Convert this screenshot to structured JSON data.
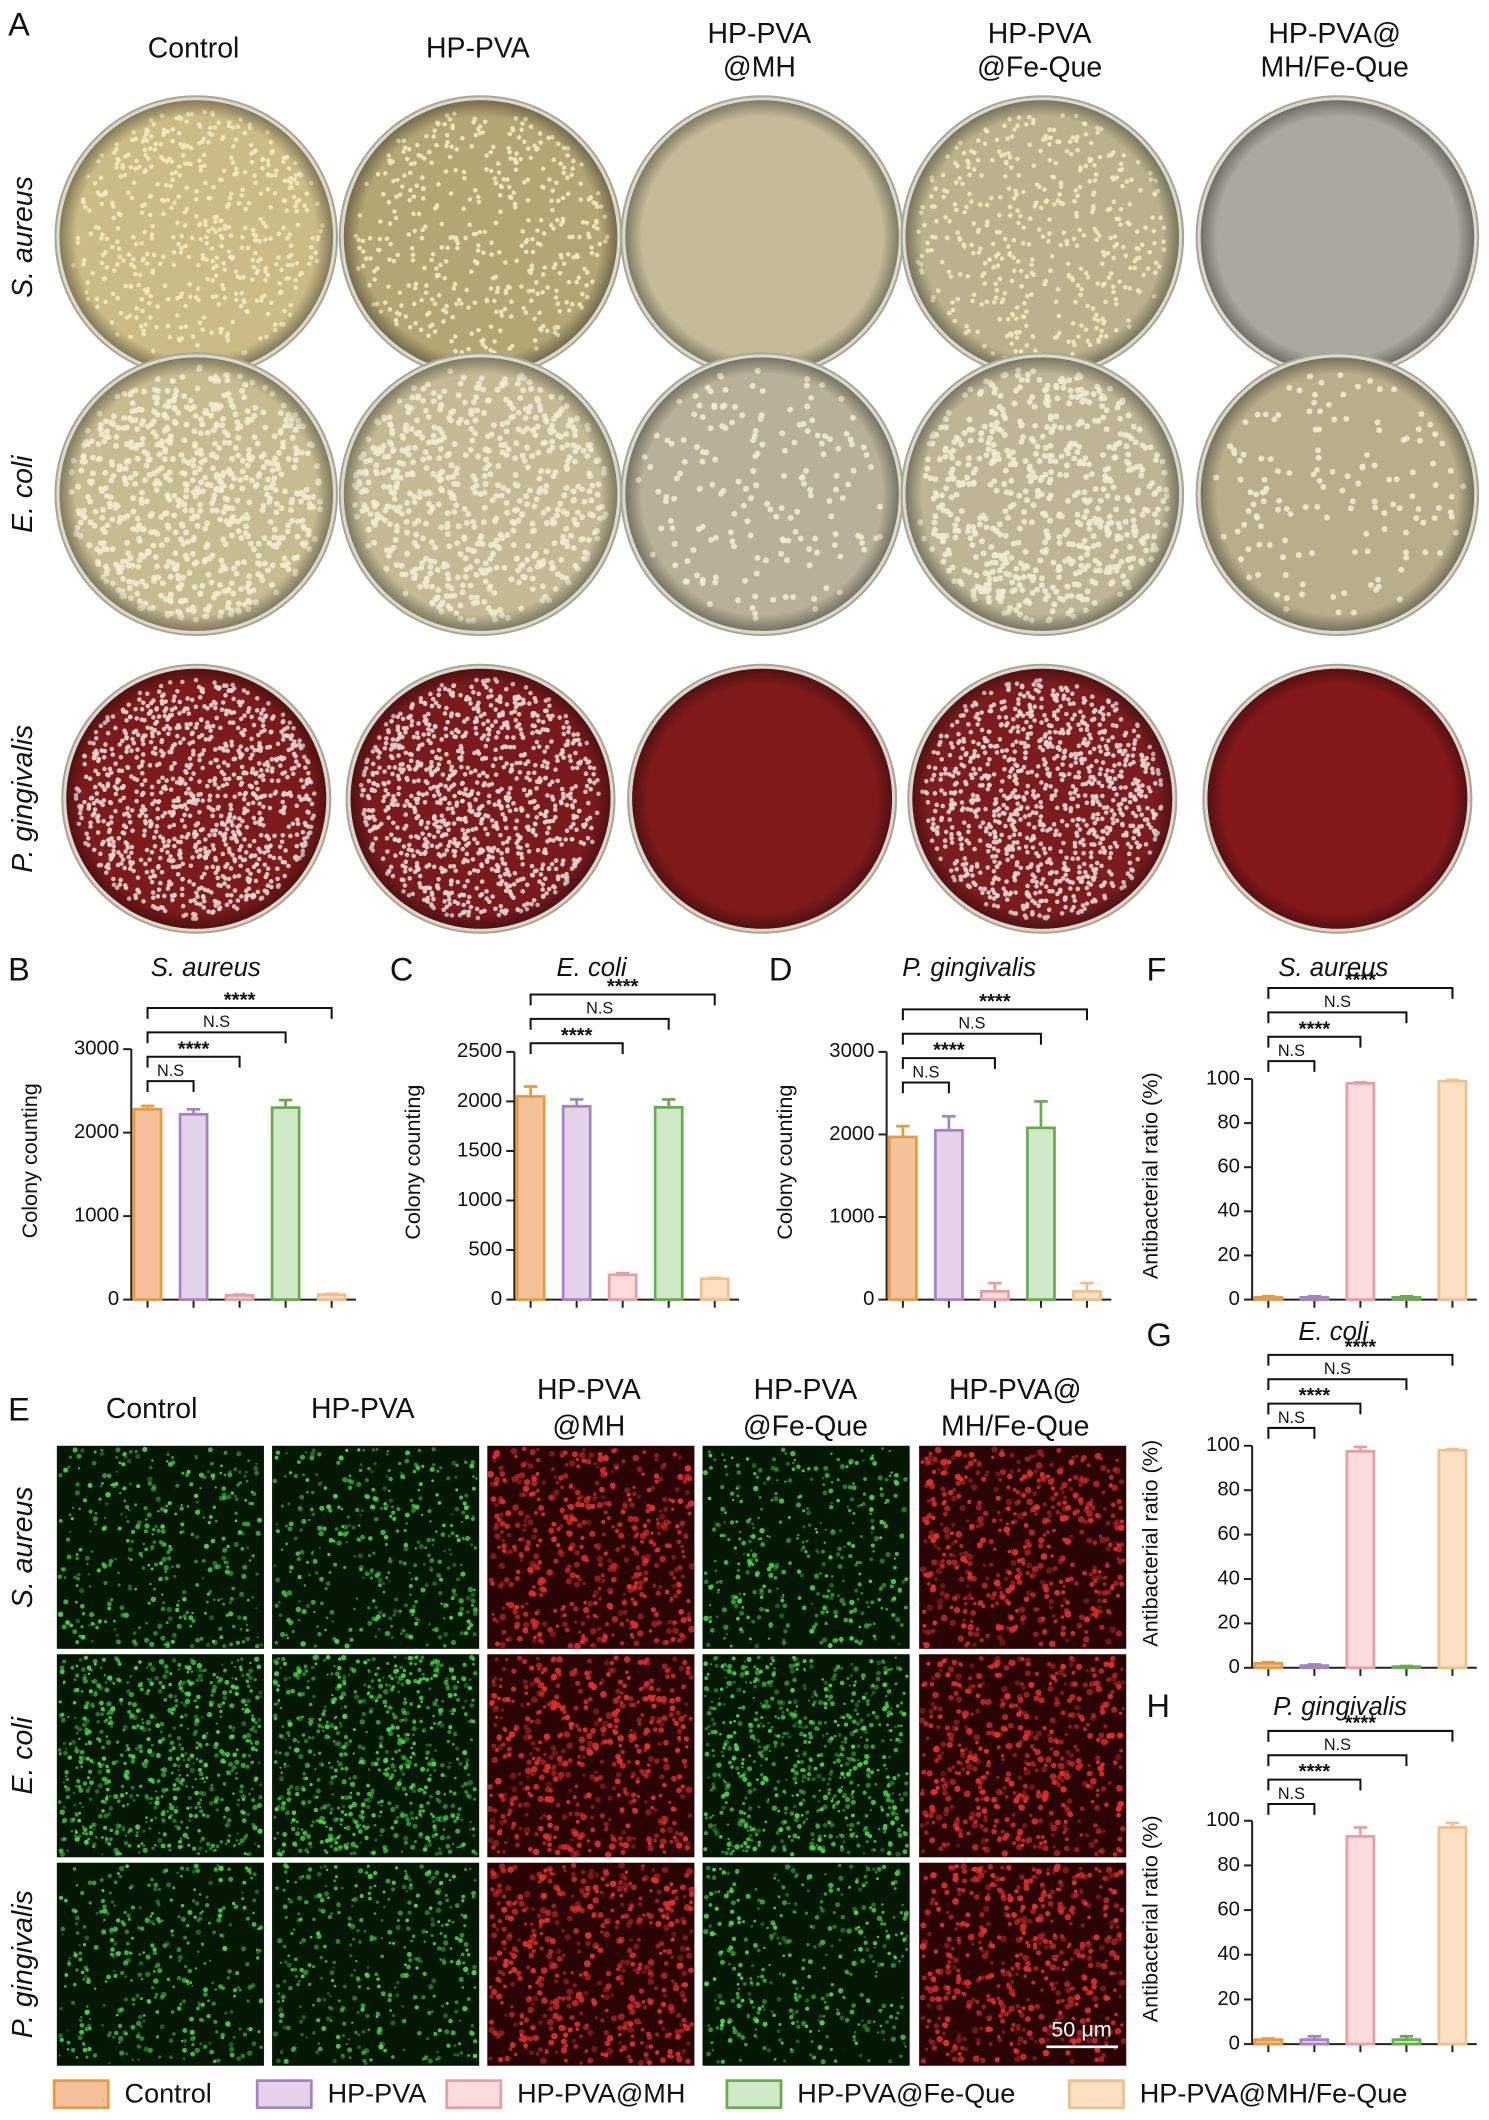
{
  "panel_a": {
    "label": "A",
    "columns": [
      [
        "Control"
      ],
      [
        "HP-PVA"
      ],
      [
        "HP-PVA",
        "@MH"
      ],
      [
        "HP-PVA",
        "@Fe-Que"
      ],
      [
        "HP-PVA@",
        "MH/Fe-Que"
      ]
    ],
    "rows": [
      "S. aureus",
      "E. coli",
      "P. gingivalis"
    ]
  },
  "panel_e": {
    "label": "E",
    "columns": [
      [
        "Control"
      ],
      [
        "HP-PVA"
      ],
      [
        "HP-PVA",
        "@MH"
      ],
      [
        "HP-PVA",
        "@Fe-Que"
      ],
      [
        "HP-PVA@",
        "MH/Fe-Que"
      ]
    ],
    "rows": [
      "S. aureus",
      "E. coli",
      "P. gingivalis"
    ],
    "scale_bar": "50 μm"
  },
  "legend": [
    {
      "name": "Control",
      "fill": "#f5c09a",
      "stroke": "#e89a3c"
    },
    {
      "name": "HP-PVA",
      "fill": "#e4d2ea",
      "stroke": "#a383c4"
    },
    {
      "name": "HP-PVA@MH",
      "fill": "#fcdcdc",
      "stroke": "#e99ca4"
    },
    {
      "name": "HP-PVA@Fe-Que",
      "fill": "#cfe9c6",
      "stroke": "#66ad4a"
    },
    {
      "name": "HP-PVA@MH/Fe-Que",
      "fill": "#fde1c2",
      "stroke": "#f2bf86"
    }
  ],
  "chart_data": [
    {
      "type": "bar",
      "label": "B",
      "title": "S. aureus",
      "ylabel": "Colony counting",
      "categories": [
        null,
        null,
        null,
        null,
        null
      ],
      "values": [
        2280,
        2220,
        50,
        2300,
        60
      ],
      "errors": [
        40,
        60,
        10,
        90,
        10
      ],
      "ylim": [
        0,
        3000
      ],
      "yticks": [
        0,
        1000,
        2000,
        3000
      ],
      "comparisons": [
        {
          "to": 1,
          "label": "N.S"
        },
        {
          "to": 2,
          "label": "****"
        },
        {
          "to": 3,
          "label": "N.S"
        },
        {
          "to": 4,
          "label": "****"
        }
      ]
    },
    {
      "type": "bar",
      "label": "C",
      "title": "E. coli",
      "ylabel": "Colony counting",
      "categories": [
        null,
        null,
        null,
        null,
        null
      ],
      "values": [
        2050,
        1950,
        250,
        1940,
        210
      ],
      "errors": [
        100,
        70,
        15,
        80,
        10
      ],
      "ylim": [
        0,
        2500
      ],
      "yticks": [
        0,
        500,
        1000,
        1500,
        2000,
        2500
      ],
      "comparisons": [
        {
          "to": 2,
          "label": "****"
        },
        {
          "to": 3,
          "label": "N.S"
        },
        {
          "to": 4,
          "label": "****"
        }
      ]
    },
    {
      "type": "bar",
      "label": "D",
      "title": "P. gingivalis",
      "ylabel": "Colony counting",
      "categories": [
        null,
        null,
        null,
        null,
        null
      ],
      "values": [
        1970,
        2050,
        100,
        2080,
        100
      ],
      "errors": [
        130,
        170,
        100,
        320,
        100
      ],
      "ylim": [
        0,
        3000
      ],
      "yticks": [
        0,
        1000,
        2000,
        3000
      ],
      "comparisons": [
        {
          "to": 1,
          "label": "N.S"
        },
        {
          "to": 2,
          "label": "****"
        },
        {
          "to": 3,
          "label": "N.S"
        },
        {
          "to": 4,
          "label": "****"
        }
      ]
    },
    {
      "type": "bar",
      "label": "F",
      "title": "S. aureus",
      "ylabel": "Antibacterial ratio (%)",
      "categories": [
        null,
        null,
        null,
        null,
        null
      ],
      "values": [
        1,
        1,
        98,
        1,
        99
      ],
      "errors": [
        0.5,
        0.5,
        0.5,
        0.5,
        0.5
      ],
      "ylim": [
        0,
        100
      ],
      "yticks": [
        0,
        20,
        40,
        60,
        80,
        100
      ],
      "comparisons": [
        {
          "to": 1,
          "label": "N.S"
        },
        {
          "to": 2,
          "label": "****"
        },
        {
          "to": 3,
          "label": "N.S"
        },
        {
          "to": 4,
          "label": "****"
        }
      ]
    },
    {
      "type": "bar",
      "label": "G",
      "title": "E. coli",
      "ylabel": "Antibacterial ratio (%)",
      "categories": [
        null,
        null,
        null,
        null,
        null
      ],
      "values": [
        2,
        1,
        97.5,
        0.5,
        98
      ],
      "errors": [
        0.5,
        0.5,
        2,
        0.3,
        0.5
      ],
      "ylim": [
        0,
        100
      ],
      "yticks": [
        0,
        20,
        40,
        60,
        80,
        100
      ],
      "comparisons": [
        {
          "to": 1,
          "label": "N.S"
        },
        {
          "to": 2,
          "label": "****"
        },
        {
          "to": 3,
          "label": "N.S"
        },
        {
          "to": 4,
          "label": "****"
        }
      ]
    },
    {
      "type": "bar",
      "label": "H",
      "title": "P. gingivalis",
      "ylabel": "Antibacterial ratio (%)",
      "categories": [
        null,
        null,
        null,
        null,
        null
      ],
      "values": [
        2,
        2,
        93,
        2,
        97
      ],
      "errors": [
        0.5,
        1.5,
        4,
        1.5,
        2
      ],
      "ylim": [
        0,
        100
      ],
      "yticks": [
        0,
        20,
        40,
        60,
        80,
        100
      ],
      "comparisons": [
        {
          "to": 1,
          "label": "N.S"
        },
        {
          "to": 2,
          "label": "****"
        },
        {
          "to": 3,
          "label": "N.S"
        },
        {
          "to": 4,
          "label": "****"
        }
      ]
    }
  ]
}
